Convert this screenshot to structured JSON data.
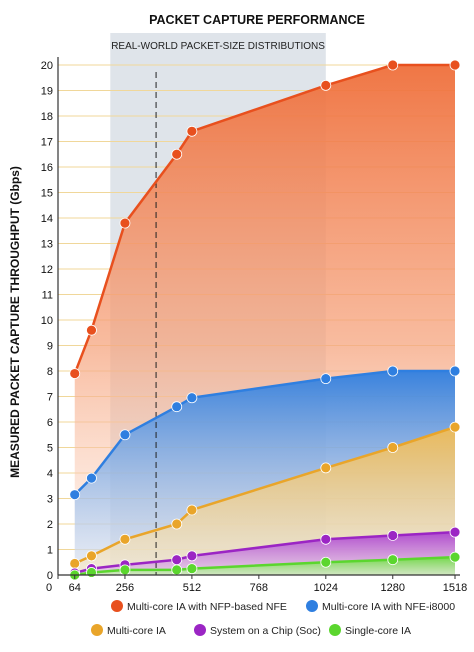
{
  "chart_data": {
    "type": "line",
    "title": "PACKET CAPTURE PERFORMANCE",
    "band_label": "REAL-WORLD PACKET-SIZE DISTRIBUTIONS",
    "band_range": [
      200,
      1024
    ],
    "dashed_line_x": 375,
    "ylabel": "MEASURED PACKET CAPTURE THROUGHPUT (Gbps)",
    "xlabel": "",
    "xlim": [
      0,
      1518
    ],
    "ylim": [
      0,
      20
    ],
    "x_tick_labels": [
      "0",
      "64",
      "256",
      "512",
      "768",
      "1024",
      "1280",
      "1518"
    ],
    "x_tick_values": [
      0,
      64,
      256,
      512,
      768,
      1024,
      1280,
      1518
    ],
    "y_tick_values": [
      0,
      1,
      2,
      3,
      4,
      5,
      6,
      7,
      8,
      9,
      10,
      11,
      12,
      13,
      14,
      15,
      16,
      17,
      18,
      19,
      20
    ],
    "grid": "horizontal",
    "legend_position": "bottom",
    "series": [
      {
        "name": "Multi-core IA with NFP-based NFE",
        "color": "#e8501e",
        "fill": "#f3906a",
        "x": [
          64,
          128,
          256,
          454,
          512,
          1024,
          1280,
          1518
        ],
        "y": [
          7.9,
          9.6,
          13.8,
          16.5,
          17.4,
          19.2,
          20.0,
          20.0
        ]
      },
      {
        "name": "Multi-core IA with NFE-i8000",
        "color": "#2f7fe0",
        "fill": "#78ade8",
        "x": [
          64,
          128,
          256,
          454,
          512,
          1024,
          1280,
          1518
        ],
        "y": [
          3.15,
          3.8,
          5.5,
          6.6,
          6.95,
          7.7,
          8.0,
          8.0
        ]
      },
      {
        "name": "Multi-core IA",
        "color": "#e9a52a",
        "fill": "#f3cf86",
        "x": [
          64,
          128,
          256,
          454,
          512,
          1024,
          1280,
          1518
        ],
        "y": [
          0.45,
          0.75,
          1.4,
          2.0,
          2.55,
          4.2,
          5.0,
          5.8
        ]
      },
      {
        "name": "System on a Chip (Soc)",
        "color": "#9b25c4",
        "fill": "#c77ddc",
        "x": [
          64,
          128,
          256,
          454,
          512,
          1024,
          1280,
          1518
        ],
        "y": [
          0.08,
          0.25,
          0.4,
          0.6,
          0.75,
          1.4,
          1.55,
          1.68
        ]
      },
      {
        "name": "Single-core IA",
        "color": "#5bd62e",
        "fill": "#9fe27e",
        "x": [
          64,
          128,
          256,
          454,
          512,
          1024,
          1280,
          1518
        ],
        "y": [
          0.0,
          0.1,
          0.2,
          0.2,
          0.25,
          0.5,
          0.6,
          0.7
        ]
      }
    ]
  }
}
